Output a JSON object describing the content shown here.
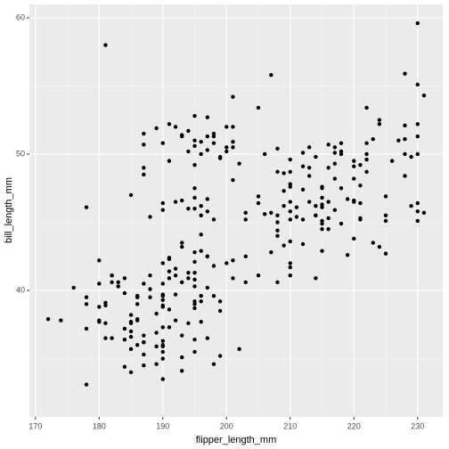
{
  "chart_data": {
    "type": "scatter",
    "x_label": "flipper_length_mm",
    "y_label": "bill_length_mm",
    "color": "#000000",
    "panel_color": "#ebebeb",
    "grid": true,
    "xlim": [
      169.05,
      233.95
    ],
    "ylim": [
      30.725,
      60.975
    ],
    "xticks": [
      170,
      180,
      190,
      200,
      210,
      220,
      230
    ],
    "yticks": [
      40,
      50,
      60
    ],
    "xminor": [
      175,
      185,
      195,
      205,
      215,
      225
    ],
    "yminor": [
      35,
      45,
      55
    ],
    "x": [
      181,
      186,
      195,
      193,
      190,
      181,
      195,
      193,
      190,
      186,
      180,
      182,
      191,
      198,
      185,
      195,
      197,
      184,
      194,
      174,
      180,
      189,
      185,
      180,
      187,
      183,
      187,
      172,
      180,
      178,
      178,
      188,
      184,
      195,
      196,
      190,
      180,
      181,
      184,
      182,
      195,
      186,
      196,
      185,
      190,
      182,
      190,
      191,
      186,
      188,
      190,
      200,
      187,
      191,
      186,
      193,
      181,
      194,
      185,
      195,
      185,
      192,
      184,
      192,
      195,
      188,
      190,
      198,
      190,
      190,
      196,
      197,
      190,
      195,
      191,
      184,
      187,
      195,
      189,
      196,
      187,
      193,
      191,
      194,
      190,
      189,
      189,
      190,
      202,
      205,
      185,
      186,
      187,
      208,
      190,
      196,
      178,
      192,
      192,
      203,
      183,
      190,
      197,
      199,
      199,
      210,
      197,
      182,
      185,
      198,
      194,
      195,
      199,
      186,
      201,
      178,
      178,
      176,
      192,
      196,
      193,
      188,
      197,
      198,
      197,
      195,
      198,
      193,
      194,
      185,
      201,
      190,
      201,
      197,
      181,
      190,
      195,
      191,
      187,
      193,
      195,
      197,
      200,
      200,
      191,
      205,
      195,
      201,
      201,
      203,
      195,
      199,
      195,
      210,
      192,
      205,
      205,
      187,
      196,
      196,
      196,
      201,
      190,
      212,
      198,
      199,
      201,
      193,
      203,
      187,
      197,
      191,
      203,
      202,
      194,
      206,
      189,
      195,
      207,
      207,
      193,
      210,
      198,
      200,
      187,
      206,
      211,
      230,
      210,
      218,
      215,
      210,
      211,
      219,
      209,
      215,
      214,
      216,
      214,
      213,
      210,
      217,
      210,
      221,
      209,
      222,
      218,
      215,
      213,
      215,
      215,
      215,
      215,
      210,
      220,
      222,
      209,
      207,
      230,
      230,
      220,
      219,
      208,
      208,
      208,
      225,
      216,
      222,
      217,
      210,
      225,
      213,
      215,
      210,
      220,
      225,
      217,
      220,
      208,
      220,
      208,
      224,
      208,
      221,
      214,
      231,
      231,
      230,
      214,
      229,
      220,
      223,
      216,
      221,
      221,
      217,
      216,
      230,
      209,
      215,
      223,
      212,
      221,
      212,
      224,
      212,
      228,
      218,
      218,
      212,
      230,
      218,
      228,
      224,
      214,
      226,
      216,
      222,
      225,
      228,
      228,
      228,
      230,
      222,
      230,
      217,
      229,
      213,
      227,
      210
    ],
    "y": [
      39.1,
      39.5,
      40.3,
      36.7,
      39.3,
      38.9,
      39.2,
      34.1,
      42.0,
      37.8,
      37.8,
      41.1,
      38.6,
      34.6,
      36.6,
      38.7,
      42.5,
      34.4,
      46.0,
      37.8,
      37.7,
      35.9,
      38.2,
      38.8,
      35.3,
      40.6,
      40.5,
      37.9,
      40.5,
      39.5,
      37.2,
      39.5,
      40.9,
      36.4,
      39.2,
      38.8,
      42.2,
      37.6,
      39.8,
      36.5,
      40.8,
      36.0,
      44.1,
      37.0,
      39.6,
      41.1,
      36.0,
      42.3,
      39.6,
      40.1,
      35.0,
      42.0,
      34.5,
      41.4,
      39.0,
      40.6,
      36.5,
      37.6,
      35.7,
      41.3,
      37.6,
      41.1,
      36.4,
      41.6,
      35.5,
      41.1,
      35.9,
      41.8,
      33.5,
      39.7,
      39.6,
      45.8,
      35.5,
      42.8,
      40.9,
      37.2,
      36.2,
      42.1,
      34.6,
      42.9,
      36.7,
      35.1,
      37.3,
      41.3,
      36.3,
      36.9,
      38.3,
      38.9,
      35.7,
      41.1,
      34.0,
      39.6,
      36.2,
      40.6,
      40.5,
      37.7,
      39.0,
      39.7,
      37.8,
      40.6,
      40.3,
      37.3,
      40.2,
      39.2,
      35.2,
      41.1,
      36.5,
      40.6,
      37.7,
      39.6,
      40.9,
      39.0,
      38.5,
      37.9,
      42.2,
      46.1,
      33.1,
      40.2,
      46.5,
      50.0,
      51.3,
      45.4,
      52.7,
      45.2,
      51.3,
      46.0,
      51.3,
      46.6,
      51.7,
      47.0,
      52.0,
      45.9,
      50.5,
      50.3,
      58.0,
      46.4,
      49.2,
      42.4,
      48.5,
      43.2,
      50.6,
      46.7,
      52.0,
      50.5,
      49.5,
      46.4,
      52.8,
      40.9,
      54.2,
      42.5,
      51.0,
      49.7,
      47.5,
      47.6,
      52.0,
      46.9,
      53.4,
      49.0,
      46.2,
      50.9,
      45.5,
      50.9,
      50.8,
      50.1,
      51.5,
      49.8,
      48.1,
      51.4,
      45.7,
      50.7,
      42.5,
      52.2,
      45.2,
      49.3,
      50.2,
      45.6,
      51.9,
      46.8,
      45.7,
      55.8,
      43.5,
      49.6,
      50.8,
      50.2,
      51.5,
      50.0,
      46.1,
      50.0,
      48.7,
      50.0,
      47.6,
      46.5,
      45.4,
      46.7,
      43.3,
      46.8,
      40.9,
      49.0,
      45.5,
      48.4,
      45.8,
      49.3,
      42.0,
      49.2,
      46.2,
      48.7,
      50.2,
      45.1,
      46.5,
      46.3,
      42.9,
      46.1,
      44.5,
      47.8,
      48.2,
      50.0,
      47.3,
      42.8,
      45.1,
      59.6,
      49.1,
      42.6,
      44.4,
      44.0,
      48.7,
      42.7,
      45.3,
      49.6,
      50.5,
      43.6,
      45.5,
      50.5,
      44.9,
      45.2,
      46.6,
      45.1,
      50.1,
      46.5,
      45.0,
      43.8,
      45.5,
      43.2,
      50.4,
      45.3,
      46.2,
      45.7,
      54.3,
      45.8,
      49.8,
      46.2,
      49.5,
      43.5,
      50.7,
      47.7,
      46.4,
      48.2,
      46.5,
      46.4,
      48.6,
      47.5,
      51.1,
      45.2,
      45.2,
      49.1,
      52.5,
      47.4,
      50.0,
      44.9,
      50.8,
      43.4,
      51.3,
      47.5,
      52.1,
      52.2,
      45.5,
      49.5,
      44.5,
      50.8,
      46.9,
      48.4,
      51.1,
      55.9,
      55.1,
      53.4,
      52.2,
      45.9,
      49.8,
      49.0,
      51.0,
      41.7
    ]
  }
}
